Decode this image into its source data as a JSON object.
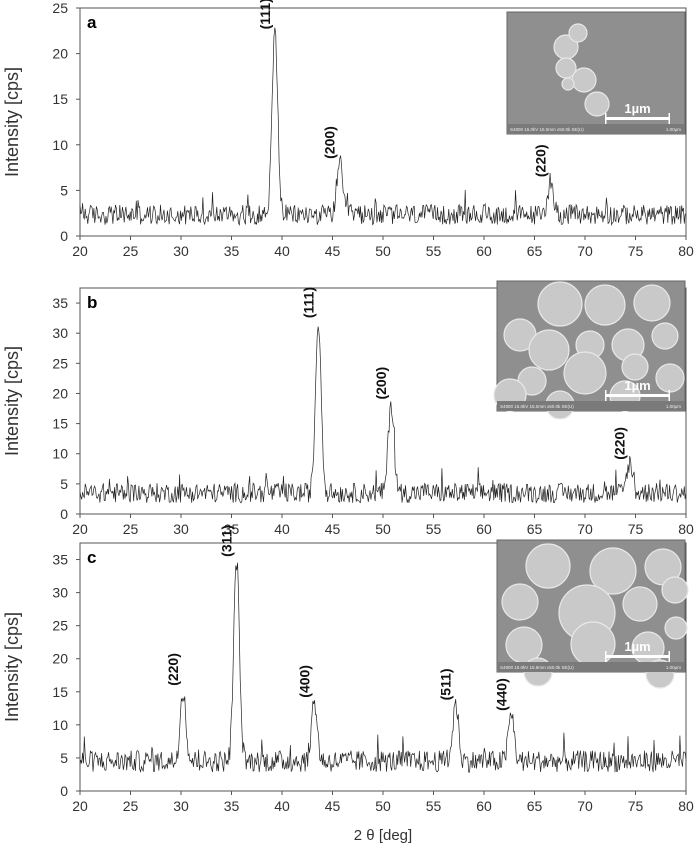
{
  "chart_data": [
    {
      "type": "line",
      "panel_letter": "a",
      "ylabel": "Intensity [cps]",
      "xlim": [
        20,
        80
      ],
      "ylim": [
        0,
        25
      ],
      "x_ticks": [
        "20",
        "25",
        "30",
        "35",
        "40",
        "45",
        "50",
        "55",
        "60",
        "65",
        "70",
        "75",
        "80"
      ],
      "y_ticks": [
        "0",
        "5",
        "10",
        "15",
        "20",
        "25"
      ],
      "baseline": 2.0,
      "peaks": [
        {
          "x": 39.3,
          "y": 22.0,
          "label": "(111)"
        },
        {
          "x": 45.7,
          "y": 7.8,
          "label": "(200)"
        },
        {
          "x": 66.6,
          "y": 5.8,
          "label": "(220)"
        }
      ],
      "inset": {
        "type": "sem-image",
        "scale_bar": "1µm",
        "caption": "S4800 15.0kV 15.0mm x50.0k SE(U)",
        "caption_right": "1.00µm"
      }
    },
    {
      "type": "line",
      "panel_letter": "b",
      "ylabel": "Intensity [cps]",
      "xlim": [
        20,
        80
      ],
      "ylim": [
        0,
        37.5
      ],
      "x_ticks": [
        "20",
        "25",
        "30",
        "35",
        "40",
        "45",
        "50",
        "55",
        "60",
        "65",
        "70",
        "75",
        "80"
      ],
      "y_ticks": [
        "0",
        "5",
        "10",
        "15",
        "20",
        "25",
        "30",
        "35"
      ],
      "baseline": 3.0,
      "peaks": [
        {
          "x": 43.6,
          "y": 31.5,
          "label": "(111)"
        },
        {
          "x": 50.8,
          "y": 18.0,
          "label": "(200)"
        },
        {
          "x": 74.4,
          "y": 8.0,
          "label": "(220)"
        }
      ],
      "inset": {
        "type": "sem-image",
        "scale_bar": "1µm",
        "caption": "S4800 15.0kV 15.0mm x50.0k SE(U)",
        "caption_right": "1.00µm"
      }
    },
    {
      "type": "line",
      "panel_letter": "c",
      "ylabel": "Intensity [cps]",
      "xlabel": "2 θ [deg]",
      "xlim": [
        20,
        80
      ],
      "ylim": [
        0,
        37.5
      ],
      "x_ticks": [
        "20",
        "25",
        "30",
        "35",
        "40",
        "45",
        "50",
        "55",
        "60",
        "65",
        "70",
        "75",
        "80"
      ],
      "y_ticks": [
        "0",
        "5",
        "10",
        "15",
        "20",
        "25",
        "30",
        "35"
      ],
      "baseline": 4.0,
      "peaks": [
        {
          "x": 30.2,
          "y": 15.0,
          "label": "(220)"
        },
        {
          "x": 35.5,
          "y": 34.5,
          "label": "(311)"
        },
        {
          "x": 43.2,
          "y": 13.2,
          "label": "(400)"
        },
        {
          "x": 57.2,
          "y": 12.8,
          "label": "(511)"
        },
        {
          "x": 62.7,
          "y": 11.2,
          "label": "(440)"
        }
      ],
      "inset": {
        "type": "sem-image",
        "scale_bar": "1µm",
        "caption": "S4800 15.0kV 15.9mm x50.0k SE(U)",
        "caption_right": "1.00µm"
      }
    }
  ]
}
